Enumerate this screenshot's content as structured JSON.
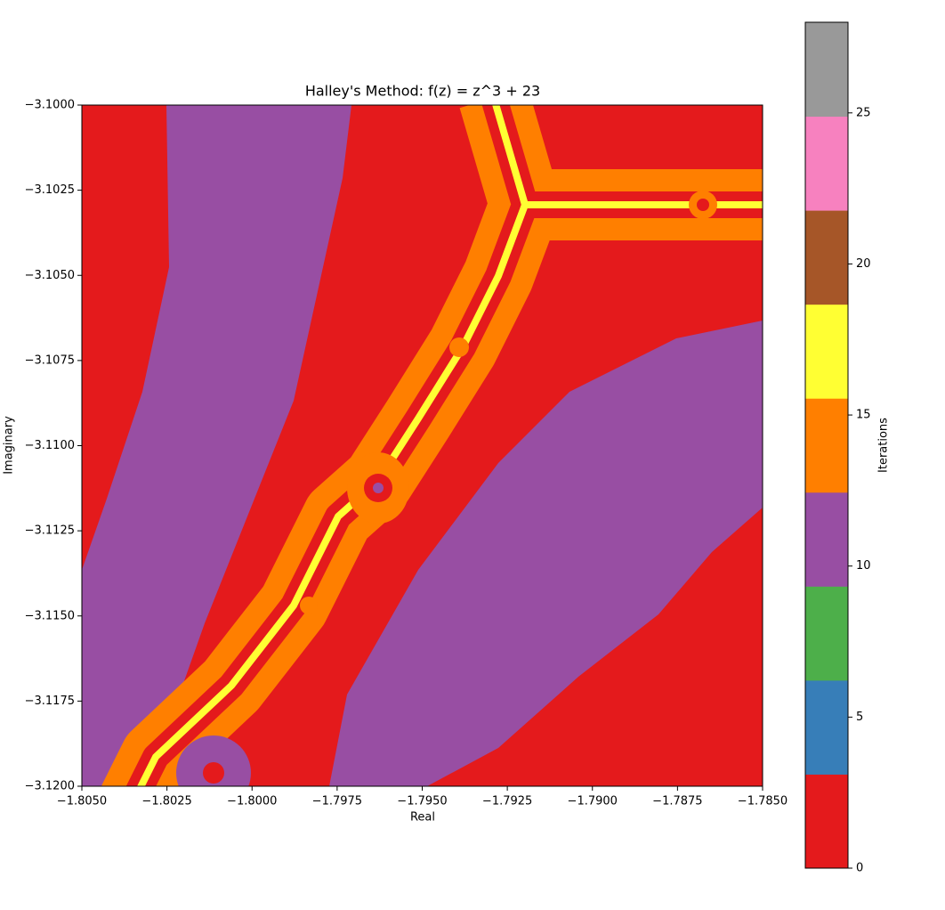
{
  "chart_data": {
    "type": "heatmap",
    "title": "Halley's Method: f(z) = z^3 + 23",
    "xlabel": "Real",
    "ylabel": "Imaginary",
    "xlim": [
      -1.805,
      -1.785
    ],
    "ylim": [
      -3.12,
      -3.1
    ],
    "xticks": [
      {
        "value": -1.805,
        "label": "−1.8050"
      },
      {
        "value": -1.8025,
        "label": "−1.8025"
      },
      {
        "value": -1.8,
        "label": "−1.8000"
      },
      {
        "value": -1.7975,
        "label": "−1.7975"
      },
      {
        "value": -1.795,
        "label": "−1.7950"
      },
      {
        "value": -1.7925,
        "label": "−1.7925"
      },
      {
        "value": -1.79,
        "label": "−1.7900"
      },
      {
        "value": -1.7875,
        "label": "−1.7875"
      },
      {
        "value": -1.785,
        "label": "−1.7850"
      }
    ],
    "yticks": [
      {
        "value": -3.12,
        "label": "−3.1200"
      },
      {
        "value": -3.1175,
        "label": "−3.1175"
      },
      {
        "value": -3.115,
        "label": "−3.1150"
      },
      {
        "value": -3.1125,
        "label": "−3.1125"
      },
      {
        "value": -3.11,
        "label": "−3.1100"
      },
      {
        "value": -3.1075,
        "label": "−3.1075"
      },
      {
        "value": -3.105,
        "label": "−3.1050"
      },
      {
        "value": -3.1025,
        "label": "−3.1025"
      },
      {
        "value": -3.1,
        "label": "−3.1000"
      }
    ],
    "colorbar": {
      "label": "Iterations",
      "lim": [
        0,
        28
      ],
      "ticks": [
        0,
        5,
        10,
        15,
        20,
        25
      ],
      "colors": [
        "#e41a1c",
        "#377eb8",
        "#4daf4a",
        "#984ea3",
        "#ff7f00",
        "#ffff33",
        "#a65628",
        "#f781bf",
        "#999999"
      ]
    }
  }
}
